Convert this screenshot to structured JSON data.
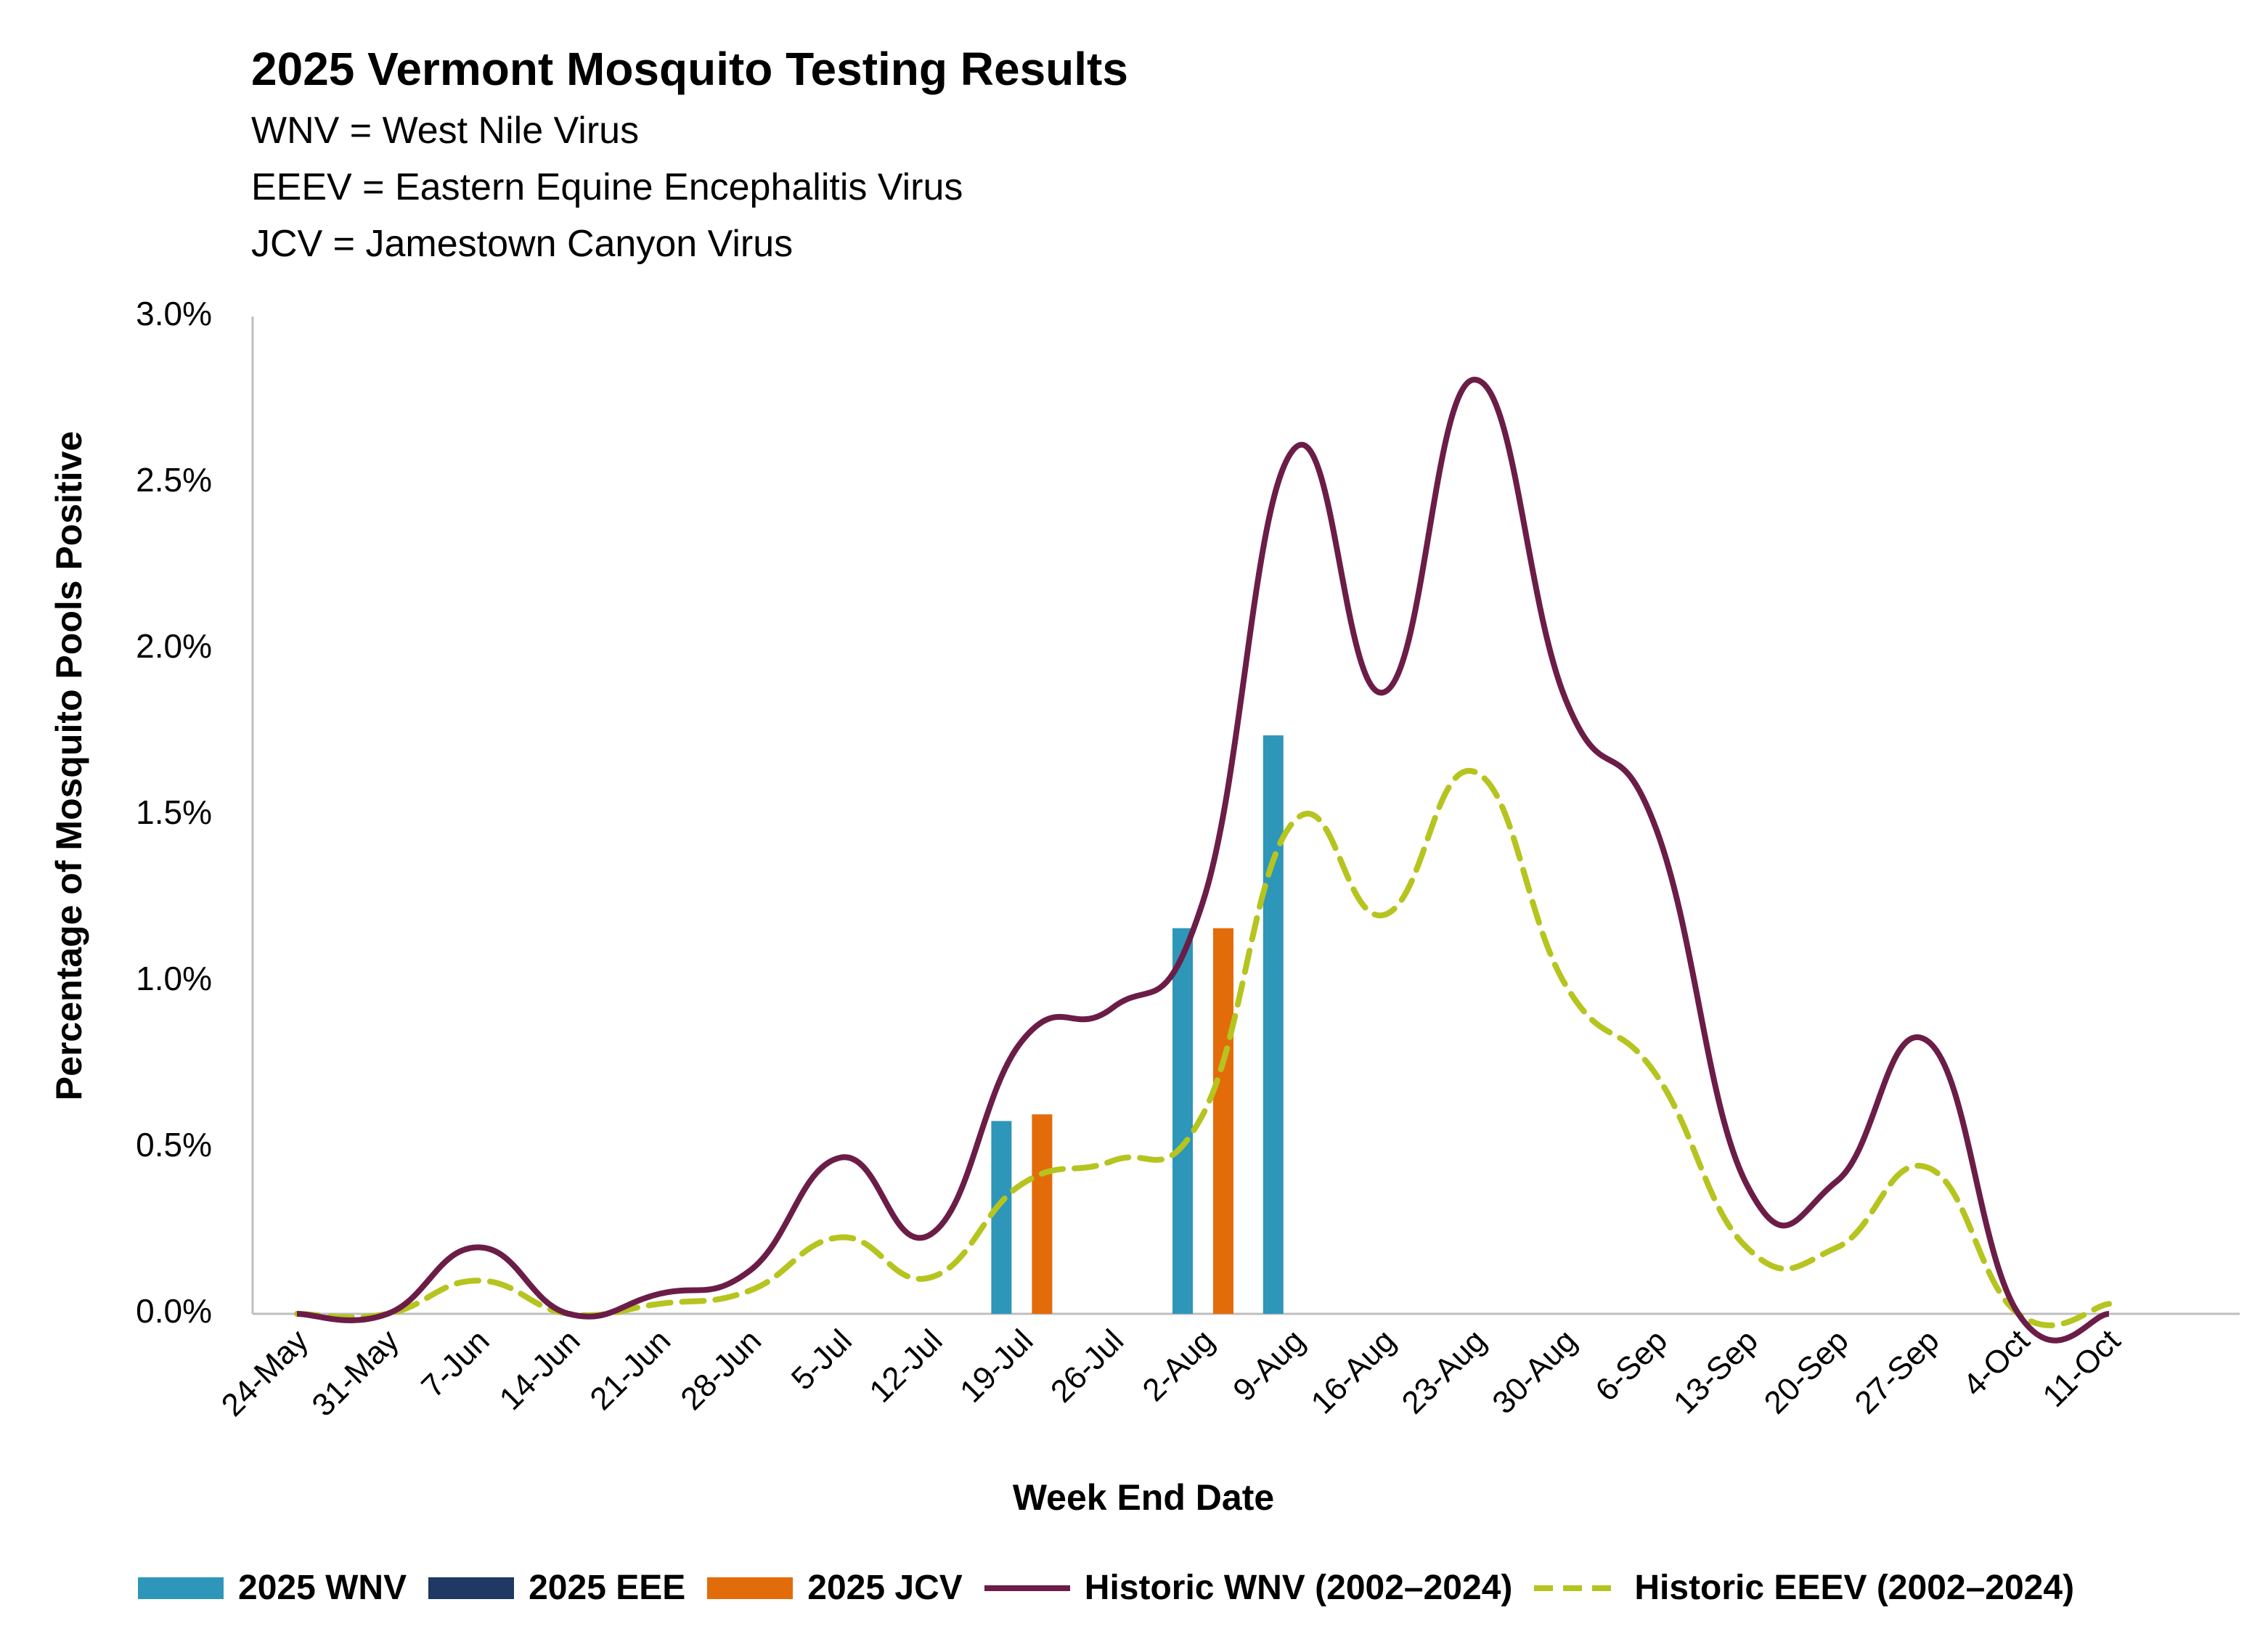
{
  "header": {
    "title": "2025 Vermont Mosquito Testing Results",
    "lines": [
      "WNV = West Nile Virus",
      "EEEV = Eastern Equine Encephalitis Virus",
      "JCV = Jamestown Canyon Virus"
    ]
  },
  "colors": {
    "wnv2025": "#2E96B9",
    "eee2025": "#1F3864",
    "jcv2025": "#E36C0A",
    "histWNV": "#6B1D47",
    "histEEEV": "#B6C41F",
    "axis": "#BFBFBF"
  },
  "chart_data": {
    "type": "bar",
    "title": "2025 Vermont Mosquito Testing Results",
    "xlabel": "Week End Date",
    "ylabel": "Percentage of Mosquito Pools Positive",
    "ylim": [
      0,
      3.0
    ],
    "yticks": [
      "0.0%",
      "0.5%",
      "1.0%",
      "1.5%",
      "2.0%",
      "2.5%",
      "3.0%"
    ],
    "grid": false,
    "legend_position": "bottom",
    "categories": [
      "24-May",
      "31-May",
      "7-Jun",
      "14-Jun",
      "21-Jun",
      "28-Jun",
      "5-Jul",
      "12-Jul",
      "19-Jul",
      "26-Jul",
      "2-Aug",
      "9-Aug",
      "16-Aug",
      "23-Aug",
      "30-Aug",
      "6-Sep",
      "13-Sep",
      "20-Sep",
      "27-Sep",
      "4-Oct",
      "11-Oct"
    ],
    "series": [
      {
        "name": "2025 WNV",
        "type": "bar",
        "values": [
          null,
          null,
          null,
          null,
          null,
          null,
          null,
          null,
          0.58,
          null,
          1.16,
          1.74,
          null,
          null,
          null,
          null,
          null,
          null,
          null,
          null,
          null
        ]
      },
      {
        "name": "2025 EEE",
        "type": "bar",
        "values": [
          null,
          null,
          null,
          null,
          null,
          null,
          null,
          null,
          null,
          null,
          null,
          null,
          null,
          null,
          null,
          null,
          null,
          null,
          null,
          null,
          null
        ]
      },
      {
        "name": "2025 JCV",
        "type": "bar",
        "values": [
          null,
          null,
          null,
          null,
          null,
          null,
          null,
          null,
          0.6,
          null,
          1.16,
          null,
          null,
          null,
          null,
          null,
          null,
          null,
          null,
          null,
          null
        ]
      },
      {
        "name": "Historic WNV (2002–2024)",
        "type": "line",
        "style": "solid",
        "values": [
          0.0,
          0.0,
          0.2,
          0.0,
          0.06,
          0.13,
          0.47,
          0.24,
          0.82,
          0.92,
          1.24,
          2.6,
          1.87,
          2.81,
          1.85,
          1.46,
          0.39,
          0.4,
          0.82,
          0.0,
          0.0
        ]
      },
      {
        "name": "Historic EEEV (2002–2024)",
        "type": "line",
        "style": "dashed",
        "values": [
          0.0,
          0.0,
          0.1,
          0.0,
          0.03,
          0.07,
          0.23,
          0.11,
          0.39,
          0.46,
          0.6,
          1.48,
          1.2,
          1.63,
          0.99,
          0.72,
          0.2,
          0.2,
          0.44,
          0.0,
          0.03
        ]
      }
    ]
  }
}
